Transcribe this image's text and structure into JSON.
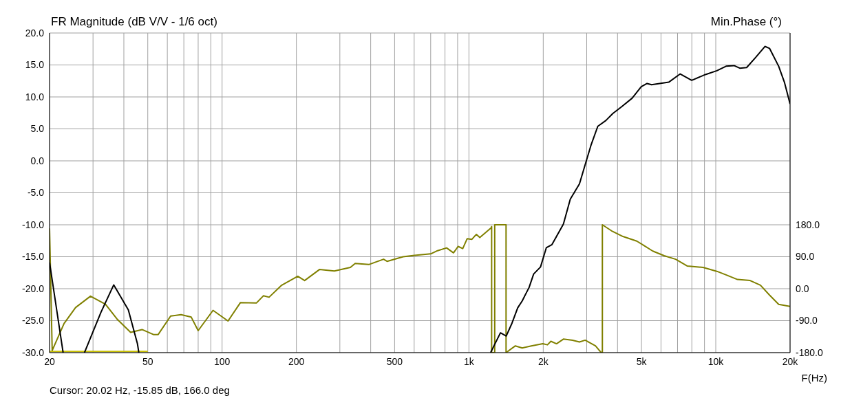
{
  "chart_data": {
    "type": "line",
    "title": "FR Magnitude (dB V/V - 1/6 oct)",
    "y2label": "Min.Phase (°)",
    "xlabel": "F(Hz)",
    "annotations": [
      "Cursor: 20.02 Hz, -15.85 dB, 166.0 deg"
    ],
    "log": "x",
    "grid": true,
    "xlim": [
      20,
      20000
    ],
    "xticks": [
      20,
      {
        "value": 30,
        "label": null
      },
      {
        "value": 40,
        "label": null
      },
      50,
      {
        "value": 60,
        "label": null
      },
      {
        "value": 70,
        "label": null
      },
      {
        "value": 80,
        "label": null
      },
      {
        "value": 90,
        "label": null
      },
      100,
      200,
      {
        "value": 300,
        "label": null
      },
      {
        "value": 400,
        "label": null
      },
      500,
      {
        "value": 600,
        "label": null
      },
      {
        "value": 700,
        "label": null
      },
      {
        "value": 800,
        "label": null
      },
      {
        "value": 900,
        "label": null
      },
      {
        "value": 1000,
        "label": "1k"
      },
      {
        "value": 2000,
        "label": "2k"
      },
      {
        "value": 3000,
        "label": null
      },
      {
        "value": 4000,
        "label": null
      },
      {
        "value": 5000,
        "label": "5k"
      },
      {
        "value": 6000,
        "label": null
      },
      {
        "value": 7000,
        "label": null
      },
      {
        "value": 8000,
        "label": null
      },
      {
        "value": 9000,
        "label": null
      },
      {
        "value": 10000,
        "label": "10k"
      },
      {
        "value": 20000,
        "label": "20k"
      }
    ],
    "ylim": [
      -30,
      20
    ],
    "yticks": [
      {
        "value": 20,
        "label": "20.0"
      },
      {
        "value": 15,
        "label": "15.0"
      },
      {
        "value": 10,
        "label": "10.0"
      },
      {
        "value": 5,
        "label": "5.0"
      },
      {
        "value": 0,
        "label": "0.0"
      },
      {
        "value": -5,
        "label": "-5.0"
      },
      {
        "value": -10,
        "label": "-10.0"
      },
      {
        "value": -15,
        "label": "-15.0"
      },
      {
        "value": -20,
        "label": "-20.0"
      },
      {
        "value": -25,
        "label": "-25.0"
      },
      {
        "value": -30,
        "label": "-30.0"
      }
    ],
    "y2lim": [
      -180,
      720
    ],
    "y2ticks": [
      {
        "value": 180,
        "label": "180.0"
      },
      {
        "value": 90,
        "label": "90.0"
      },
      {
        "value": 0,
        "label": "0.0"
      },
      {
        "value": -90,
        "label": "-90.0"
      },
      {
        "value": -180,
        "label": "-180.0"
      }
    ],
    "series": [
      {
        "color": "#c8c000",
        "x": [
          20,
          50
        ],
        "values": [
          -29.8,
          -29.8
        ]
      },
      {
        "color": "#808000",
        "axis": "y2",
        "x": [
          20,
          20.5,
          22.9,
          25.5,
          29.3,
          33.7,
          37.5,
          42.6,
          47.4,
          52.7,
          55.1,
          61.9,
          68.2,
          75,
          80,
          91.9,
          105.7,
          118.7,
          137.9,
          147,
          155,
          174.5,
          202.6,
          216,
          248,
          285,
          331,
          346,
          393,
          451,
          466,
          541,
          602,
          700,
          746,
          812,
          866,
          904,
          944,
          984,
          1028,
          1072,
          1107,
          1232,
          1236,
          1236,
          1272,
          1272,
          1414,
          1414,
          1542,
          1644,
          1790,
          1992,
          2080,
          2148,
          2264,
          2414,
          2630,
          2804,
          2958,
          3256,
          3436,
          3472,
          3472,
          3782,
          4208,
          4786,
          5102,
          5556,
          6180,
          6878,
          7656,
          8884,
          10100,
          11008,
          12244,
          13772,
          15164,
          16510,
          17980,
          20000
        ],
        "values": [
          170,
          -174,
          -98,
          -53,
          -21,
          -44,
          -85,
          -123,
          -115,
          -129,
          -129,
          -77,
          -73,
          -80,
          -118,
          -61,
          -91,
          -39,
          -40,
          -20,
          -24,
          10,
          35,
          23,
          54,
          50,
          60,
          71,
          68,
          83,
          77,
          90,
          94,
          98,
          107,
          115,
          101,
          119,
          113,
          141,
          139,
          153,
          144,
          172,
          175,
          -180,
          -180,
          180,
          180,
          -180,
          -161,
          -167,
          -161,
          -155,
          -158,
          -148,
          -155,
          -142,
          -145,
          -150,
          -145,
          -161,
          -180,
          -180,
          180,
          163,
          147,
          134,
          122,
          106,
          93,
          83,
          64,
          60,
          49,
          39,
          26,
          23,
          10,
          -18,
          -44,
          -50
        ]
      },
      {
        "color": "#000000",
        "x": [
          20,
          22.7,
          25,
          27.7,
          32.3,
          36.4,
          41.7,
          45.4,
          46,
          500,
          1224,
          1342,
          1416,
          1494,
          1576,
          1644,
          1753,
          1829,
          1950,
          2058,
          2170,
          2414,
          2574,
          2804,
          2989,
          3120,
          3327,
          3586,
          3824,
          4164,
          4582,
          4990,
          5268,
          5496,
          6448,
          7178,
          7990,
          9080,
          10100,
          11008,
          11860,
          12510,
          13340,
          14520,
          15820,
          16510,
          17980,
          18970,
          20000
        ],
        "values": [
          -15.9,
          -30,
          null,
          -30,
          -23.7,
          -19.4,
          -23.3,
          -28.6,
          -30,
          null,
          -30,
          -26.9,
          -27.4,
          -25.4,
          -23,
          -21.9,
          -19.8,
          -17.7,
          -16.6,
          -13.6,
          -13.1,
          -9.9,
          -6,
          -3.6,
          0,
          2.4,
          5.4,
          6.3,
          7.4,
          8.5,
          9.8,
          11.6,
          12.1,
          11.9,
          12.3,
          13.6,
          12.6,
          13.5,
          14.1,
          14.8,
          14.9,
          14.5,
          14.6,
          16.2,
          17.9,
          17.6,
          14.8,
          12.3,
          8.9
        ]
      }
    ]
  }
}
